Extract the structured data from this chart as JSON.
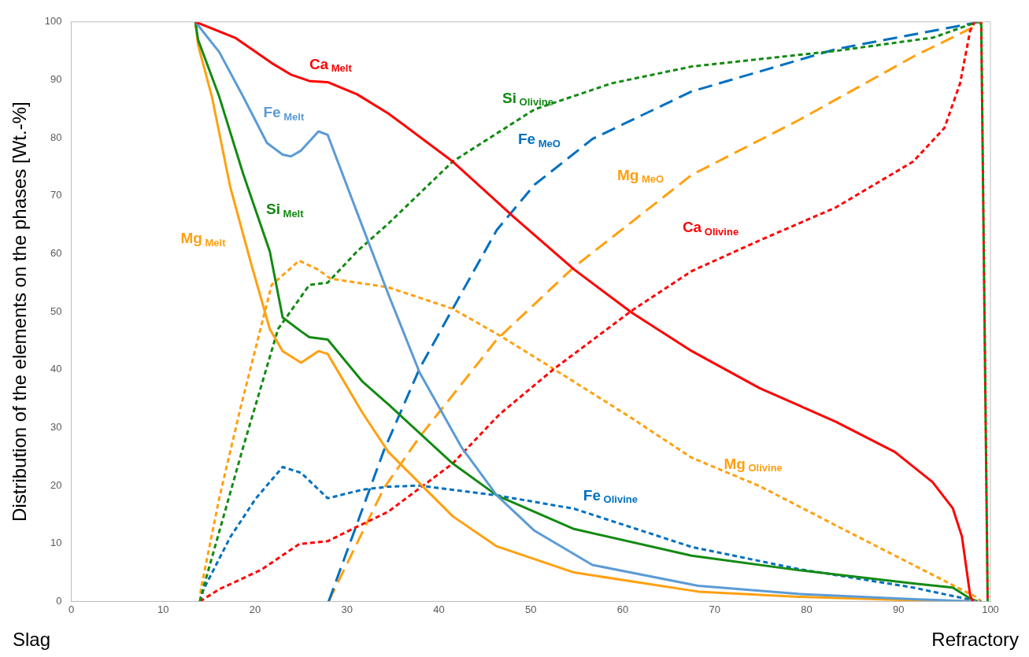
{
  "chart_data": {
    "type": "line",
    "ylabel": "Distribution of the elements on the phases [Wt.-%]",
    "xlim": [
      0,
      100
    ],
    "ylim": [
      0,
      100
    ],
    "xticks": [
      0,
      10,
      20,
      30,
      40,
      50,
      60,
      70,
      80,
      90,
      100
    ],
    "yticks": [
      0,
      10,
      20,
      30,
      40,
      50,
      60,
      70,
      80,
      90,
      100
    ],
    "grid": false,
    "legend": false,
    "marker": "none",
    "annotations": [
      "Slag",
      "Refractory"
    ],
    "series": [
      {
        "name": "Ca$_{Melt}$",
        "color": "#ff0000",
        "line_style": "solid",
        "x": [
          13.5,
          17.9,
          21.8,
          23.9,
          25.9,
          27.9,
          31.1,
          34.5,
          41.5,
          48.1,
          54.7,
          61,
          67.5,
          74.9,
          83.2,
          89.6,
          93.7,
          95.9,
          96.9,
          97.8,
          98.1
        ],
        "values": [
          100,
          97.2,
          92.9,
          90.9,
          89.8,
          89.6,
          87.5,
          84.2,
          75.9,
          66.4,
          57.3,
          49.8,
          43.2,
          36.8,
          31,
          25.8,
          20.6,
          16.1,
          11.2,
          1,
          0
        ]
      },
      {
        "name": "Fe$_{Melt}$",
        "color": "#5b9bd5",
        "line_style": "solid",
        "x": [
          13.5,
          16.1,
          18.7,
          21.3,
          23,
          23.9,
          25,
          26.9,
          27.9,
          31.1,
          34.5,
          37.9,
          42.5,
          46.3,
          50.4,
          56.7,
          68.2,
          79.1,
          91.6,
          98.5
        ],
        "values": [
          100,
          94.8,
          87.1,
          79.1,
          77.1,
          76.8,
          77.8,
          81.1,
          80.5,
          67.1,
          53,
          39.5,
          26.5,
          18.3,
          12.2,
          6.3,
          2.7,
          1.3,
          0.4,
          0
        ]
      },
      {
        "name": "Si$_{Melt}$",
        "color": "#138a13",
        "line_style": "solid",
        "x": [
          13.5,
          13.8,
          16.1,
          18.7,
          21.6,
          23,
          25,
          25.9,
          27.9,
          31.7,
          34.5,
          41.5,
          46.3,
          54.7,
          67.5,
          79.1,
          91.6,
          95.9,
          97.8,
          98.6
        ],
        "values": [
          100,
          96.9,
          87.1,
          73.8,
          60.4,
          49,
          46.6,
          45.6,
          45.2,
          37.9,
          34,
          23.8,
          18.3,
          12.5,
          7.9,
          5.4,
          3.1,
          2.4,
          0.5,
          0
        ]
      },
      {
        "name": "Mg$_{Melt}$",
        "color": "#ffa010",
        "line_style": "solid",
        "x": [
          13.5,
          13.8,
          15.3,
          17.3,
          19.6,
          21.6,
          23,
          25,
          26.9,
          27.9,
          31.7,
          34.5,
          41.5,
          46.3,
          54.7,
          68.2,
          79.1,
          91.6,
          98.5
        ],
        "values": [
          100,
          96,
          87.1,
          71.5,
          58.1,
          47,
          43.2,
          41.2,
          43.2,
          42.7,
          32.5,
          25.8,
          14.7,
          9.5,
          5,
          1.7,
          0.8,
          0.2,
          0
        ]
      },
      {
        "name": "Si$_{Olivine}$",
        "color": "#138a13",
        "line_style": "dotted",
        "x": [
          14,
          14.4,
          18.7,
          22.5,
          25.9,
          27.9,
          31.1,
          34.5,
          41.5,
          50.4,
          58.8,
          67.5,
          83.2,
          93.8,
          98.4,
          99,
          99.7
        ],
        "values": [
          0,
          2.5,
          26.6,
          47,
          54.6,
          55,
          60.4,
          65.2,
          75.9,
          84.9,
          89.4,
          92.3,
          95,
          97.3,
          99.9,
          100,
          0
        ]
      },
      {
        "name": "Ca$_{Olivine}$",
        "color": "#ff0000",
        "line_style": "dotted",
        "x": [
          14,
          16.1,
          20.7,
          24.8,
          27.9,
          30.2,
          34.5,
          41.5,
          46.6,
          52.5,
          61,
          67.5,
          74.9,
          83.2,
          91.6,
          95,
          96.7,
          97.8,
          98.3,
          99,
          99.7
        ],
        "values": [
          0,
          2.1,
          5.5,
          9.9,
          10.4,
          12.2,
          15.5,
          23.8,
          32.3,
          40.1,
          50.2,
          57,
          62.3,
          68,
          75.9,
          81.7,
          89.4,
          98.5,
          100,
          100,
          0
        ]
      },
      {
        "name": "Fe$_{Olivine}$",
        "color": "#0070c0",
        "line_style": "dotted",
        "x": [
          14,
          14.4,
          17.3,
          20.1,
          23,
          25,
          27.9,
          31.7,
          34.5,
          37.9,
          46.3,
          54.7,
          67.5,
          79.1,
          91.6,
          98.4,
          99
        ],
        "values": [
          0,
          2.1,
          11.1,
          17.8,
          23.2,
          22.2,
          17.8,
          19.3,
          19.8,
          20,
          18.3,
          16,
          9.4,
          5.6,
          2.4,
          0.1,
          0
        ]
      },
      {
        "name": "Mg$_{Olivine}$",
        "color": "#ffa010",
        "line_style": "dotted",
        "x": [
          14,
          14.1,
          16.1,
          18.4,
          21.8,
          24.8,
          26.8,
          28.2,
          34.5,
          41.5,
          46.6,
          52.5,
          61,
          67.5,
          74.9,
          83.2,
          91.6,
          98.4,
          99
        ],
        "values": [
          0,
          2.1,
          17.8,
          33.3,
          54.6,
          58.8,
          57.3,
          55.7,
          54.2,
          50.5,
          45.9,
          40.1,
          31.6,
          24.8,
          19.9,
          13.1,
          6.3,
          0.8,
          0
        ]
      },
      {
        "name": "Fe$_{MeO}$",
        "color": "#0070c0",
        "line_style": "dashed",
        "x": [
          28,
          34,
          37.9,
          41.5,
          46.3,
          50.4,
          56.7,
          67.5,
          83.2,
          97.9,
          98.5
        ],
        "values": [
          0,
          26,
          40.2,
          50.5,
          64.1,
          71.9,
          79.8,
          88,
          95.3,
          99.7,
          100
        ]
      },
      {
        "name": "Mg$_{MeO}$",
        "color": "#ffa010",
        "line_style": "dashed",
        "x": [
          28,
          34,
          37.9,
          46.3,
          54.7,
          61,
          67.5,
          79.1,
          91.6,
          98.8,
          99
        ],
        "values": [
          0,
          19.5,
          28.4,
          45.2,
          57.7,
          65.5,
          73.6,
          83,
          94,
          99.6,
          100
        ]
      }
    ]
  }
}
